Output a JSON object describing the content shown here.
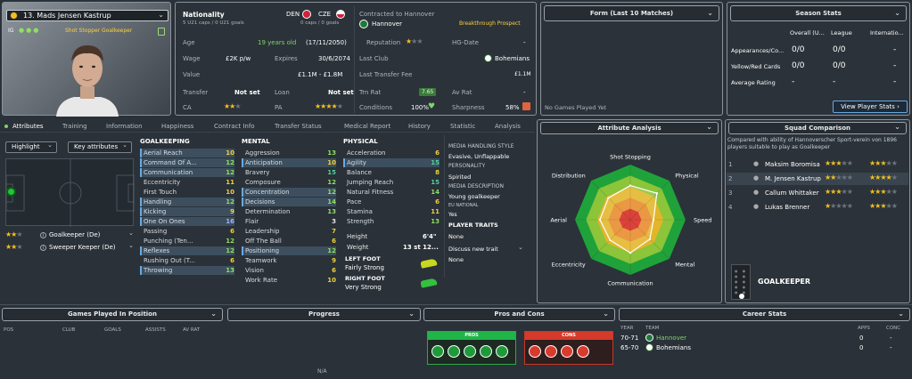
{
  "player": {
    "name": "13. Mads Jensen Kastrup",
    "role_tag": "Shot Stopper Goalkeeper",
    "ig_label": "IG"
  },
  "info": {
    "nationality_label": "Nationality",
    "nat1": "DEN",
    "nat2": "CZE",
    "caps1": "5 U21 caps / 0 U21 goals",
    "caps2": "0 caps / 0 goals",
    "age_label": "Age",
    "age_val": "19 years old",
    "dob": "(17/11/2050)",
    "wage_label": "Wage",
    "wage_val": "£2K p/w",
    "expires_label": "Expires",
    "expires_val": "30/6/2074",
    "value_label": "Value",
    "value_val": "£1.1M - £1.8M",
    "transfer_label": "Transfer",
    "transfer_val": "Not set",
    "loan_label": "Loan",
    "loan_val": "Not set",
    "ca_label": "CA",
    "pa_label": "PA",
    "ca_stars": 2,
    "pa_stars": 4.5
  },
  "contract": {
    "contracted_to": "Contracted to Hannover",
    "status": "Breakthrough Prospect",
    "club": "Hannover",
    "reputation_label": "Reputation",
    "hg_label": "HG-Date",
    "hg_val": "-",
    "last_club_label": "Last Club",
    "last_club_val": "Bohemians",
    "last_fee_label": "Last Transfer Fee",
    "last_fee_val": "£1.1M",
    "trn_label": "Trn Rat",
    "trn_val": "7.65",
    "av_label": "Av Rat",
    "av_val": "-",
    "cond_label": "Conditions",
    "cond_val": "100%",
    "sharp_label": "Sharpness",
    "sharp_val": "58%"
  },
  "form": {
    "title": "Form (Last 10 Matches)",
    "empty": "No Games Played Yet"
  },
  "season": {
    "title": "Season Stats",
    "cols": [
      "Overall (U...",
      "League",
      "Internatio..."
    ],
    "rows": [
      {
        "label": "Appearances/Co...",
        "vals": [
          "0/0",
          "0/0",
          "-"
        ]
      },
      {
        "label": "Yellow/Red Cards",
        "vals": [
          "0/0",
          "0/0",
          "-"
        ]
      },
      {
        "label": "Average Rating",
        "vals": [
          "-",
          "-",
          "-"
        ]
      }
    ],
    "button": "View Player Stats"
  },
  "tabs": [
    "Attributes",
    "Training",
    "Information",
    "Happiness",
    "Contract Info",
    "Transfer Status",
    "Medical Report",
    "History",
    "Statistic",
    "Analysis"
  ],
  "attrs_ctrl": {
    "highlight": "Highlight",
    "key": "Key attributes"
  },
  "positions": [
    {
      "stars": 2,
      "label": "Goalkeeper (De)"
    },
    {
      "stars": 2,
      "label": "Sweeper Keeper (De)"
    }
  ],
  "goalkeeping": {
    "title": "GOALKEEPING",
    "items": [
      {
        "n": "Aerial Reach",
        "v": "10"
      },
      {
        "n": "Command Of A...",
        "v": "12"
      },
      {
        "n": "Communication",
        "v": "12"
      },
      {
        "n": "Eccentricity",
        "v": "11"
      },
      {
        "n": "First Touch",
        "v": "10"
      },
      {
        "n": "Handling",
        "v": "12"
      },
      {
        "n": "Kicking",
        "v": "9"
      },
      {
        "n": "One On Ones",
        "v": "16"
      },
      {
        "n": "Passing",
        "v": "6"
      },
      {
        "n": "Punching (Ten...",
        "v": "12"
      },
      {
        "n": "Reflexes",
        "v": "12"
      },
      {
        "n": "Rushing Out (T...",
        "v": "6"
      },
      {
        "n": "Throwing",
        "v": "13"
      }
    ]
  },
  "mental": {
    "title": "MENTAL",
    "items": [
      {
        "n": "Aggression",
        "v": "13"
      },
      {
        "n": "Anticipation",
        "v": "10"
      },
      {
        "n": "Bravery",
        "v": "15"
      },
      {
        "n": "Composure",
        "v": "12"
      },
      {
        "n": "Concentration",
        "v": "12"
      },
      {
        "n": "Decisions",
        "v": "14"
      },
      {
        "n": "Determination",
        "v": "13"
      },
      {
        "n": "Flair",
        "v": "3"
      },
      {
        "n": "Leadership",
        "v": "7"
      },
      {
        "n": "Off The Ball",
        "v": "6"
      },
      {
        "n": "Positioning",
        "v": "12"
      },
      {
        "n": "Teamwork",
        "v": "9"
      },
      {
        "n": "Vision",
        "v": "6"
      },
      {
        "n": "Work Rate",
        "v": "10"
      }
    ]
  },
  "physical": {
    "title": "PHYSICAL",
    "items": [
      {
        "n": "Acceleration",
        "v": "6"
      },
      {
        "n": "Agility",
        "v": "15"
      },
      {
        "n": "Balance",
        "v": "8"
      },
      {
        "n": "Jumping Reach",
        "v": "15"
      },
      {
        "n": "Natural Fitness",
        "v": "14"
      },
      {
        "n": "Pace",
        "v": "6"
      },
      {
        "n": "Stamina",
        "v": "11"
      },
      {
        "n": "Strength",
        "v": "13"
      }
    ],
    "height_label": "Height",
    "height_val": "6'4\"",
    "weight_label": "Weight",
    "weight_val": "13 st 12...",
    "left_foot_label": "LEFT FOOT",
    "left_foot_val": "Fairly Strong",
    "right_foot_label": "RIGHT FOOT",
    "right_foot_val": "Very Strong"
  },
  "media": {
    "style_label": "MEDIA HANDLING STYLE",
    "style_val": "Evasive, Unflappable",
    "personality_label": "PERSONALITY",
    "personality_val": "Spirited",
    "desc_label": "MEDIA DESCRIPTION",
    "desc_val": "Young goalkeeper",
    "eu_label": "EU NATIONAL",
    "eu_val": "Yes",
    "traits_label": "PLAYER TRAITS",
    "traits_val": "None",
    "discuss": "Discuss new trait",
    "none2": "None"
  },
  "analysis": {
    "title": "Attribute Analysis",
    "labels": [
      "Shot Stopping",
      "Physical",
      "Speed",
      "Mental",
      "Communication",
      "Eccentricity",
      "Aerial",
      "Distribution"
    ],
    "values": [
      0.62,
      0.68,
      0.42,
      0.5,
      0.6,
      0.52,
      0.55,
      0.56
    ]
  },
  "squad": {
    "title": "Squad Comparison",
    "desc": "Compared with ability of Hannoverscher Sport-verein von 1896 players suitable to play as Goalkeeper",
    "rows": [
      {
        "rank": "1",
        "name": "Maksim Boromisa",
        "ca": 3,
        "pa": 3
      },
      {
        "rank": "2",
        "name": "M. Jensen Kastrup",
        "ca": 2,
        "pa": 4.5
      },
      {
        "rank": "3",
        "name": "Callum Whittaker",
        "ca": 3,
        "pa": 3
      },
      {
        "rank": "4",
        "name": "Lukas Brenner",
        "ca": 1,
        "pa": 3.5
      }
    ],
    "position": "GOALKEEPER"
  },
  "bottom": {
    "games_title": "Games Played In Position",
    "games_cols": [
      "POS",
      "CLUB",
      "GOALS",
      "ASSISTS",
      "AV RAT"
    ],
    "progress_title": "Progress",
    "progress_empty": "N/A",
    "proscons_title": "Pros and Cons",
    "pros": "PROS",
    "cons": "CONS",
    "career_title": "Career Stats",
    "career_cols": [
      "YEAR",
      "TEAM",
      "APPS",
      "CONC"
    ],
    "career_rows": [
      {
        "year": "70-71",
        "team": "Hannover",
        "apps": "0",
        "conc": "-"
      },
      {
        "year": "65-70",
        "team": "Bohemians",
        "apps": "0",
        "conc": "-"
      }
    ]
  },
  "colors": {
    "accent_blue": "#6aa8e0",
    "green": "#7fd36c",
    "yellow": "#ffd23c"
  }
}
